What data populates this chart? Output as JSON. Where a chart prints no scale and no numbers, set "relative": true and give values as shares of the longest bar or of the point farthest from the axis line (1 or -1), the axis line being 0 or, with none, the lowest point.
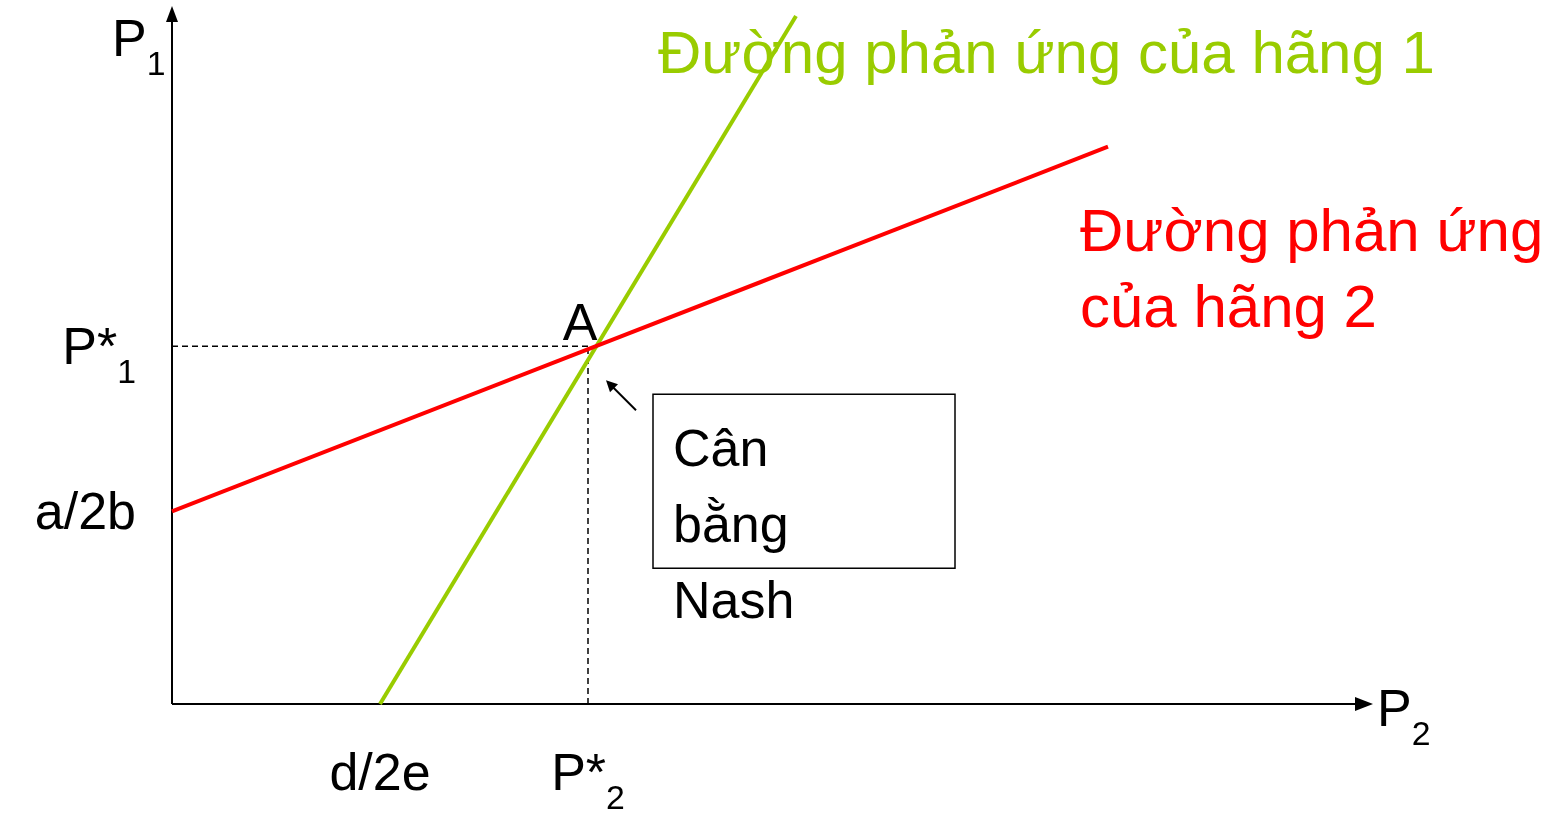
{
  "chart_data": {
    "type": "line",
    "relative": true,
    "xlabel": "P$_{2}$",
    "ylabel": "P$_{1}$",
    "categories": [
      null,
      null,
      "d/2e",
      null,
      "P*$_{2}$",
      null,
      null,
      null,
      null,
      null,
      null,
      null
    ],
    "series": [
      {
        "name": "Đường phản ứng của hãng 1",
        "color": "#99cc00",
        "values": [
          null,
          null,
          0,
          null,
          null,
          null,
          1,
          null,
          null,
          null,
          null,
          null
        ]
      },
      {
        "name": "Đường phản ứng của hãng 2",
        "color": "#ff0000",
        "values": [
          0.28,
          null,
          null,
          null,
          null,
          null,
          null,
          null,
          null,
          0.81,
          null,
          null
        ]
      }
    ],
    "ref_lines": [
      {
        "axis": "y",
        "value": 0.52,
        "label": "P*$_{1}$",
        "color": "#000000",
        "line_style": "dashed"
      },
      {
        "axis": "x",
        "value": "P*$_{2}$",
        "color": "#000000",
        "line_style": "dashed"
      }
    ],
    "annotations": [
      "a/2b",
      {
        "text": "A",
        "x": "P*$_{2}$",
        "y": 0.52
      },
      {
        "text": "Cân bằng Nash",
        "x": "P*$_{2}$",
        "y": 0.52
      }
    ]
  }
}
